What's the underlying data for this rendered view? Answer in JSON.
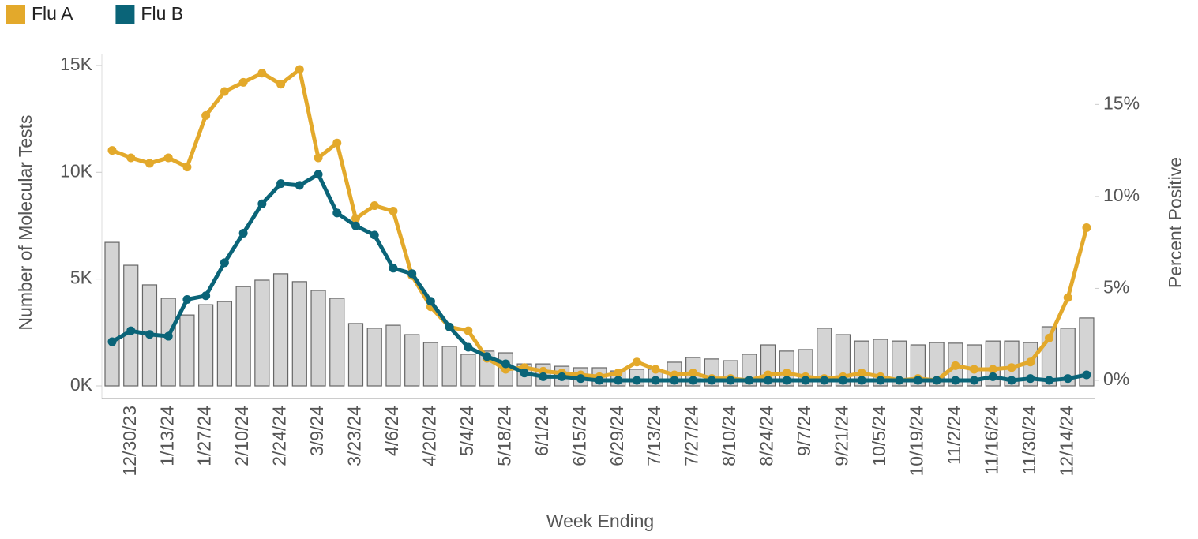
{
  "chart_data": {
    "type": "bar",
    "x_label": "Week Ending",
    "y_label": "Number of Molecular Tests",
    "y2_label": "Percent Positive",
    "categories": [
      null,
      "12/30/23",
      null,
      "1/13/24",
      null,
      "1/27/24",
      null,
      "2/10/24",
      null,
      "2/24/24",
      null,
      "3/9/24",
      null,
      "3/23/24",
      null,
      "4/6/24",
      null,
      "4/20/24",
      null,
      "5/4/24",
      null,
      "5/18/24",
      null,
      "6/1/24",
      null,
      "6/15/24",
      null,
      "6/29/24",
      null,
      "7/13/24",
      null,
      "7/27/24",
      null,
      "8/10/24",
      null,
      "8/24/24",
      null,
      "9/7/24",
      null,
      "9/21/24",
      null,
      "10/5/24",
      null,
      "10/19/24",
      null,
      "11/2/24",
      null,
      "11/16/24",
      null,
      "11/30/24",
      null,
      "12/14/24",
      null
    ],
    "values": [
      6720,
      5650,
      4730,
      4100,
      3320,
      3800,
      3950,
      4650,
      4950,
      5250,
      4880,
      4470,
      4100,
      2920,
      2700,
      2840,
      2400,
      2030,
      1850,
      1480,
      1630,
      1550,
      1030,
      1030,
      920,
      850,
      850,
      700,
      780,
      780,
      1110,
      1330,
      1260,
      1180,
      1480,
      1920,
      1630,
      1700,
      2700,
      2400,
      2100,
      2180,
      2100,
      1920,
      2030,
      2000,
      1920,
      2100,
      2100,
      2030,
      2770,
      2700,
      3180
    ],
    "color": "#d4d4d4",
    "series": [
      {
        "name": "Flu A",
        "type": "line",
        "axis": "y2",
        "color": "#e3a92b",
        "values": [
          12.5,
          12.1,
          11.8,
          12.1,
          11.6,
          14.4,
          15.7,
          16.2,
          16.7,
          16.1,
          16.9,
          12.1,
          12.9,
          8.8,
          9.5,
          9.2,
          5.7,
          4.0,
          2.9,
          2.7,
          1.2,
          0.6,
          0.7,
          0.5,
          0.4,
          0.3,
          0.2,
          0.4,
          1.0,
          0.6,
          0.3,
          0.4,
          0.1,
          0.1,
          0.0,
          0.3,
          0.4,
          0.2,
          0.1,
          0.2,
          0.4,
          0.2,
          0.0,
          0.1,
          0.0,
          0.8,
          0.6,
          0.6,
          0.7,
          1.0,
          2.3,
          4.5,
          8.3
        ]
      },
      {
        "name": "Flu B",
        "type": "line",
        "axis": "y2",
        "color": "#0a6478",
        "values": [
          2.1,
          2.7,
          2.5,
          2.4,
          4.4,
          4.6,
          6.4,
          8.0,
          9.6,
          10.7,
          10.6,
          11.2,
          9.1,
          8.4,
          7.9,
          6.1,
          5.8,
          4.3,
          2.9,
          1.8,
          1.3,
          0.9,
          0.4,
          0.2,
          0.2,
          0.1,
          0.0,
          0.0,
          0.0,
          0.0,
          0.0,
          0.0,
          0.0,
          0.0,
          0.0,
          0.0,
          0.0,
          0.0,
          0.0,
          0.0,
          0.0,
          0.0,
          0.0,
          0.0,
          0.0,
          0.0,
          0.0,
          0.2,
          0.0,
          0.1,
          0.0,
          0.1,
          0.3
        ]
      }
    ],
    "ylim": [
      0,
      15500
    ],
    "yticks": [
      {
        "value": 0,
        "label": "0K"
      },
      {
        "value": 5000,
        "label": "5K"
      },
      {
        "value": 10000,
        "label": "10K"
      },
      {
        "value": 15000,
        "label": "15K"
      }
    ],
    "y2lim": [
      -0.3,
      17.7
    ],
    "y2ticks": [
      {
        "value": 0,
        "label": "0%"
      },
      {
        "value": 5,
        "label": "5%"
      },
      {
        "value": 10,
        "label": "10%"
      },
      {
        "value": 15,
        "label": "15%"
      }
    ],
    "legend": "top-left"
  }
}
